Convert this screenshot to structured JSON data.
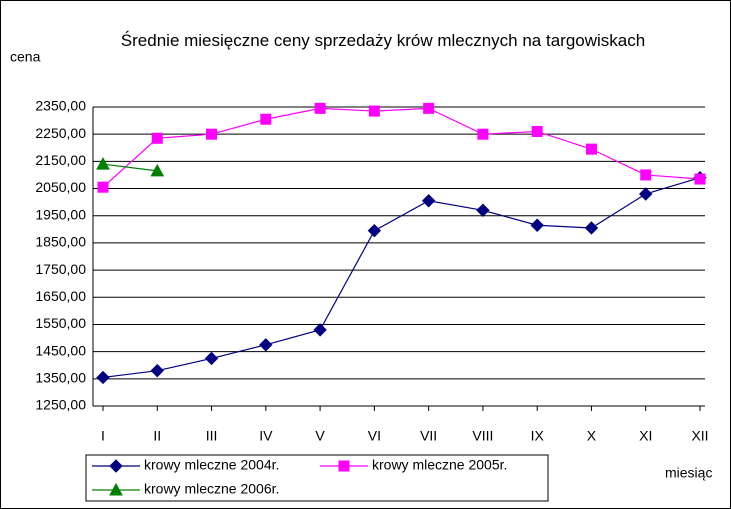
{
  "chart_data": {
    "type": "line",
    "title": "Średnie miesięczne ceny sprzedaży krów mlecznych na targowiskach",
    "y_label": "cena",
    "x_label": "miesiąc",
    "categories": [
      "I",
      "II",
      "III",
      "IV",
      "V",
      "VI",
      "VII",
      "VIII",
      "IX",
      "X",
      "XI",
      "XII"
    ],
    "series": [
      {
        "name": "krowy mleczne 2004r.",
        "color": "#000080",
        "marker": "diamond",
        "values": [
          1355,
          1380,
          1425,
          1475,
          1530,
          1895,
          2005,
          1970,
          1915,
          1905,
          2030,
          2090
        ]
      },
      {
        "name": "krowy mleczne 2005r.",
        "color": "#ff00ff",
        "marker": "square",
        "values": [
          2055,
          2235,
          2250,
          2305,
          2345,
          2335,
          2345,
          2250,
          2260,
          2195,
          2100,
          2085
        ]
      },
      {
        "name": "krowy mleczne 2006r.",
        "color": "#008000",
        "marker": "triangle",
        "values": [
          2140,
          2115,
          null,
          null,
          null,
          null,
          null,
          null,
          null,
          null,
          null,
          null
        ]
      }
    ],
    "ylim": [
      1250,
      2350
    ],
    "yticks": [
      {
        "value": 1250,
        "label": "1250,00"
      },
      {
        "value": 1350,
        "label": "1350,00"
      },
      {
        "value": 1450,
        "label": "1450,00"
      },
      {
        "value": 1550,
        "label": "1550,00"
      },
      {
        "value": 1650,
        "label": "1650,00"
      },
      {
        "value": 1750,
        "label": "1750,00"
      },
      {
        "value": 1850,
        "label": "1850,00"
      },
      {
        "value": 1950,
        "label": "1950,00"
      },
      {
        "value": 2050,
        "label": "2050,00"
      },
      {
        "value": 2150,
        "label": "2150,00"
      },
      {
        "value": 2250,
        "label": "2250,00"
      },
      {
        "value": 2350,
        "label": "2350,00"
      }
    ],
    "grid": true,
    "legend": "bottom"
  }
}
